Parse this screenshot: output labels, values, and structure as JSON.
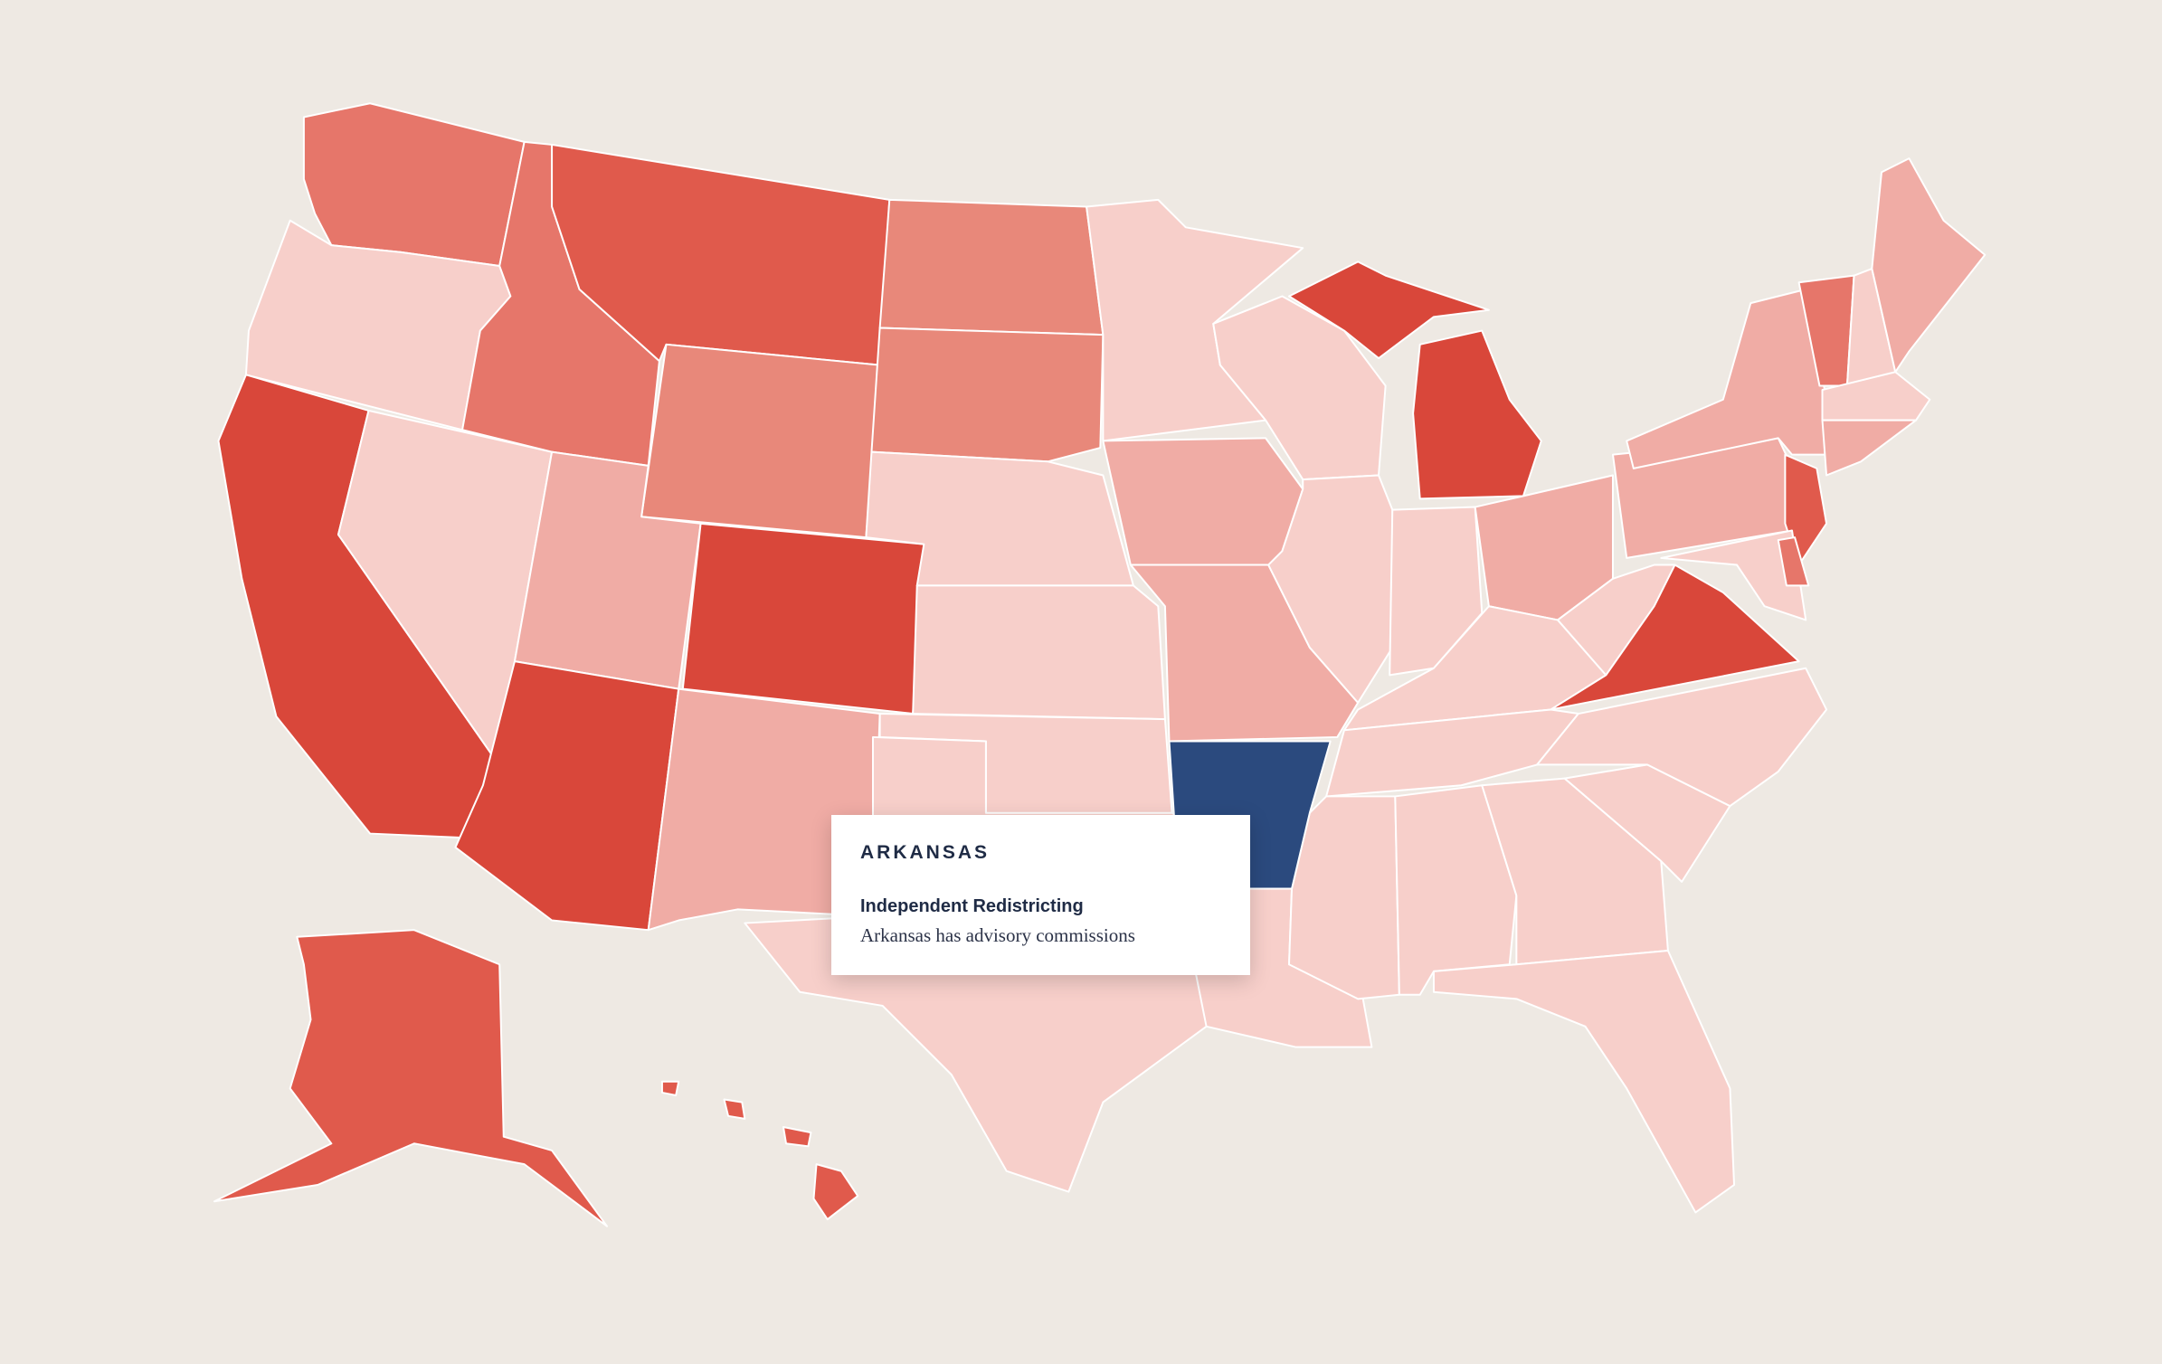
{
  "tooltip": {
    "state": "ARKANSAS",
    "heading": "Independent Redistricting",
    "description": "Arkansas has advisory commissions"
  }
}
